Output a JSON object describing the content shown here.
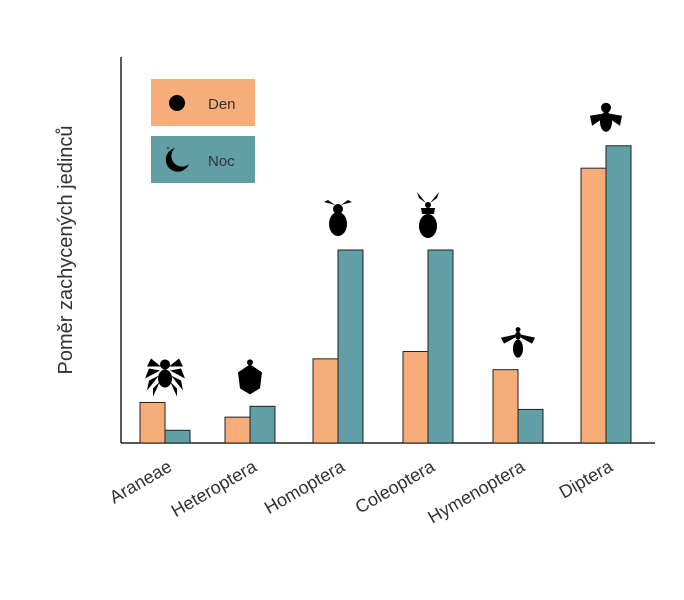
{
  "chart_data": {
    "type": "bar",
    "title": "",
    "xlabel": "",
    "ylabel": "Poměr zachycených jedinců",
    "categories": [
      "Araneae",
      "Heteroptera",
      "Homoptera",
      "Coleoptera",
      "Hymenoptera",
      "Diptera"
    ],
    "series": [
      {
        "name": "Den",
        "values": [
          0.105,
          0.067,
          0.218,
          0.237,
          0.19,
          0.712
        ]
      },
      {
        "name": "Noc",
        "values": [
          0.033,
          0.095,
          0.5,
          0.5,
          0.087,
          0.77
        ]
      }
    ],
    "ylim": [
      0,
      1
    ],
    "yticks_shown": false,
    "grid": false,
    "legend_position": "top-left",
    "colors": {
      "Den": "#f7ad79",
      "Noc": "#619ea6"
    },
    "icons": [
      "spider-icon",
      "stink-bug-icon",
      "aphid-icon",
      "beetle-icon",
      "wasp-icon",
      "fly-icon"
    ],
    "legend_icons": {
      "Den": "sun-icon",
      "Noc": "moon-icon"
    }
  }
}
